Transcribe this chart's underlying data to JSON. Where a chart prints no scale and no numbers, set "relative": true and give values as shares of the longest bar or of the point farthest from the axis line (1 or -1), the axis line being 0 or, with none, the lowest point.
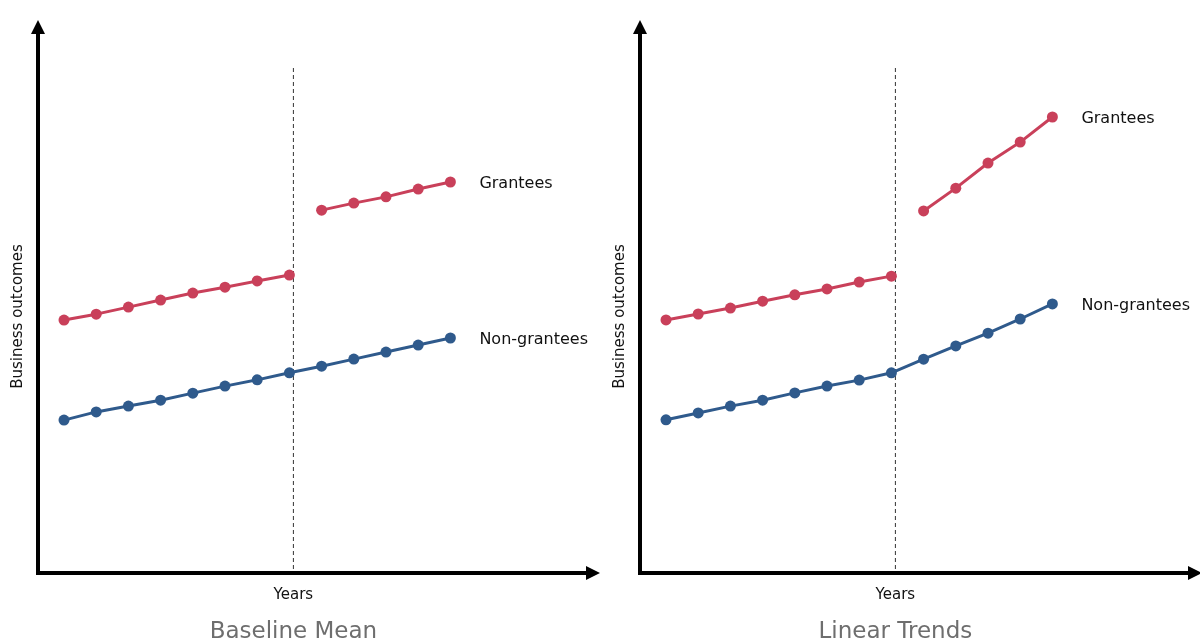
{
  "chart_data": [
    {
      "type": "line",
      "title": "Baseline Mean",
      "xlabel": "Years",
      "ylabel": "Business outcomes",
      "relative": true,
      "marker": "circle",
      "line_style": "solid",
      "legend": "right",
      "categories": [
        null,
        null,
        null,
        null,
        null,
        null,
        null,
        null,
        null,
        null,
        null,
        null,
        null
      ],
      "series": [
        {
          "color": "#c9405a",
          "values": [
            0.647,
            0.662,
            0.68,
            0.698,
            0.716,
            0.731,
            0.747,
            0.762,
            null,
            null,
            null,
            null,
            null
          ]
        },
        {
          "name": "Grantees",
          "color": "#c9405a",
          "values": [
            null,
            null,
            null,
            null,
            null,
            null,
            null,
            null,
            0.928,
            0.946,
            0.962,
            0.982,
            1
          ]
        },
        {
          "name": "Non-grantees",
          "color": "#2f5a8c",
          "values": [
            0.391,
            0.412,
            0.427,
            0.442,
            0.46,
            0.478,
            0.494,
            0.512,
            0.529,
            0.547,
            0.565,
            0.583,
            0.601
          ]
        }
      ]
    },
    {
      "type": "line",
      "title": "Linear Trends",
      "xlabel": "Years",
      "ylabel": "Business outcomes",
      "relative": true,
      "marker": "circle",
      "line_style": "solid",
      "legend": "right",
      "categories": [
        null,
        null,
        null,
        null,
        null,
        null,
        null,
        null,
        null,
        null,
        null,
        null,
        null
      ],
      "series": [
        {
          "color": "#c9405a",
          "values": [
            0.555,
            0.568,
            0.581,
            0.596,
            0.61,
            0.623,
            0.638,
            0.651,
            null,
            null,
            null,
            null,
            null
          ]
        },
        {
          "name": "Grantees",
          "color": "#c9405a",
          "values": [
            null,
            null,
            null,
            null,
            null,
            null,
            null,
            null,
            0.794,
            0.844,
            0.899,
            0.945,
            1
          ]
        },
        {
          "name": "Non-grantees",
          "color": "#2f5a8c",
          "values": [
            0.336,
            0.351,
            0.366,
            0.379,
            0.395,
            0.41,
            0.423,
            0.439,
            0.469,
            0.498,
            0.526,
            0.557,
            0.59
          ]
        }
      ]
    }
  ]
}
